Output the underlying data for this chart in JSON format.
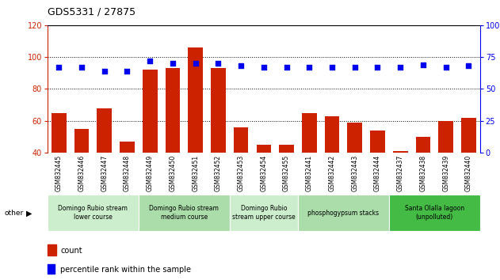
{
  "title": "GDS5331 / 27875",
  "samples": [
    "GSM832445",
    "GSM832446",
    "GSM832447",
    "GSM832448",
    "GSM832449",
    "GSM832450",
    "GSM832451",
    "GSM832452",
    "GSM832453",
    "GSM832454",
    "GSM832455",
    "GSM832441",
    "GSM832442",
    "GSM832443",
    "GSM832444",
    "GSM832437",
    "GSM832438",
    "GSM832439",
    "GSM832440"
  ],
  "counts": [
    65,
    55,
    68,
    47,
    92,
    93,
    106,
    93,
    56,
    45,
    45,
    65,
    63,
    59,
    54,
    41,
    50,
    60,
    62
  ],
  "percentiles": [
    67,
    67,
    64,
    64,
    72,
    70,
    70,
    70,
    68,
    67,
    67,
    67,
    67,
    67,
    67,
    67,
    69,
    67,
    68
  ],
  "bar_color": "#cc2200",
  "dot_color": "#0000ee",
  "ylim_left": [
    40,
    120
  ],
  "ylim_right": [
    0,
    100
  ],
  "yticks_left": [
    40,
    60,
    80,
    100,
    120
  ],
  "yticks_right": [
    0,
    25,
    50,
    75,
    100
  ],
  "grid_yticks": [
    60,
    80,
    100
  ],
  "background_color": "#ffffff",
  "xticklabel_bg": "#d8d8d8",
  "groups": [
    {
      "label": "Domingo Rubio stream\nlower course",
      "start": 0,
      "end": 3,
      "color": "#cceecc"
    },
    {
      "label": "Domingo Rubio stream\nmedium course",
      "start": 4,
      "end": 7,
      "color": "#aaddaa"
    },
    {
      "label": "Domingo Rubio\nstream upper course",
      "start": 8,
      "end": 10,
      "color": "#cceecc"
    },
    {
      "label": "phosphogypsum stacks",
      "start": 11,
      "end": 14,
      "color": "#aaddaa"
    },
    {
      "label": "Santa Olalla lagoon\n(unpolluted)",
      "start": 15,
      "end": 18,
      "color": "#44bb44"
    }
  ],
  "legend_count_label": "count",
  "legend_pct_label": "percentile rank within the sample",
  "other_label": "other"
}
